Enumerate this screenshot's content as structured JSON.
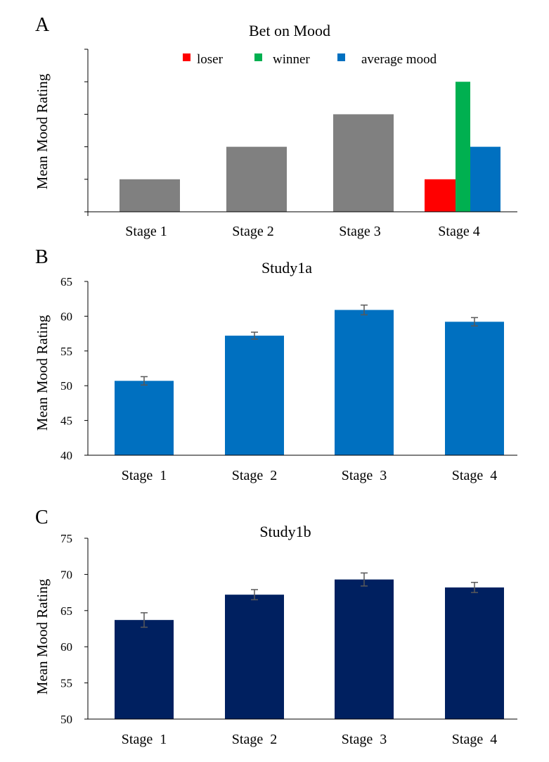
{
  "chart_data": [
    {
      "panel": "A",
      "type": "bar",
      "title": "Bet on Mood",
      "xlabel": "",
      "ylabel": "Mean Mood Rating",
      "categories": [
        "Stage 1",
        "Stage 2",
        "Stage 3",
        "Stage 4"
      ],
      "values": [
        1,
        2,
        3,
        null
      ],
      "ylim": [
        0,
        5
      ],
      "yticks_labeled": false,
      "bar_color": "#808080",
      "stage4_bars": [
        {
          "name": "loser",
          "value": 1,
          "color": "#FF0000"
        },
        {
          "name": "winner",
          "value": 4,
          "color": "#00B050"
        },
        {
          "name": "average mood",
          "value": 2,
          "color": "#0070C0"
        }
      ],
      "legend": [
        {
          "label": "loser",
          "color": "#FF0000"
        },
        {
          "label": "winner",
          "color": "#00B050"
        },
        {
          "label": "average mood",
          "color": "#0070C0"
        }
      ],
      "legend_position": "top-center",
      "grid": false
    },
    {
      "panel": "B",
      "type": "bar",
      "title": "Study1a",
      "xlabel": "",
      "ylabel": "Mean Mood Rating",
      "categories": [
        "Stage  1",
        "Stage  2",
        "Stage  3",
        "Stage  4"
      ],
      "values": [
        50.7,
        57.2,
        60.9,
        59.2
      ],
      "errors": [
        0.6,
        0.5,
        0.7,
        0.6
      ],
      "ylim": [
        40,
        65
      ],
      "yticks": [
        40,
        45,
        50,
        55,
        60,
        65
      ],
      "bar_color": "#0070C0",
      "grid": false
    },
    {
      "panel": "C",
      "type": "bar",
      "title": "Study1b",
      "xlabel": "",
      "ylabel": "Mean Mood Rating",
      "categories": [
        "Stage  1",
        "Stage  2",
        "Stage  3",
        "Stage  4"
      ],
      "values": [
        63.7,
        67.2,
        69.3,
        68.2
      ],
      "errors": [
        1.0,
        0.7,
        0.9,
        0.7
      ],
      "ylim": [
        50,
        75
      ],
      "yticks": [
        50,
        55,
        60,
        65,
        70,
        75
      ],
      "bar_color": "#002060",
      "grid": false
    }
  ]
}
